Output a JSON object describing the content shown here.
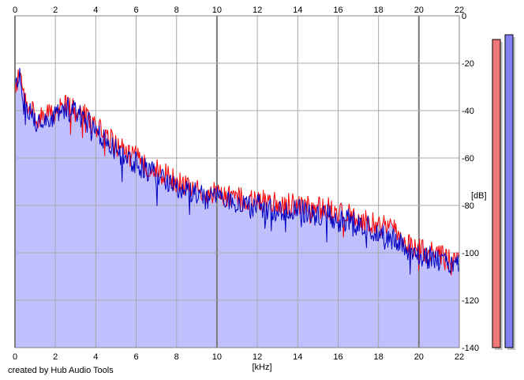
{
  "chart_data": {
    "type": "line",
    "x_unit": "[kHz]",
    "y_unit": "[dB]",
    "xlim": [
      0,
      22
    ],
    "ylim": [
      -140,
      0
    ],
    "x_ticks": [
      "0",
      "2",
      "4",
      "6",
      "8",
      "10",
      "12",
      "14",
      "16",
      "18",
      "20",
      "22"
    ],
    "y_ticks": [
      "0",
      "-20",
      "-40",
      "-60",
      "-80",
      "-100",
      "-120",
      "-140"
    ],
    "grid": true,
    "fill_color": "#c0c0ff",
    "series": [
      {
        "color": "#ff0000",
        "x": [
          0,
          0.2,
          0.5,
          1,
          1.5,
          2,
          2.5,
          3,
          3.5,
          4,
          4.5,
          5,
          5.5,
          6,
          6.5,
          7,
          7.5,
          8,
          8.5,
          9,
          9.5,
          10,
          10.5,
          11,
          11.5,
          12,
          12.5,
          13,
          13.5,
          14,
          14.5,
          15,
          15.5,
          16,
          16.5,
          17,
          17.5,
          18,
          18.5,
          19,
          19.5,
          20,
          20.5,
          21,
          21.5,
          22
        ],
        "y": [
          -30,
          -26,
          -36,
          -42,
          -43,
          -40,
          -38,
          -40,
          -42,
          -47,
          -50,
          -55,
          -58,
          -60,
          -63,
          -65,
          -67,
          -70,
          -72,
          -73,
          -74,
          -75,
          -76,
          -77,
          -78,
          -78,
          -79,
          -79,
          -80,
          -79,
          -80,
          -81,
          -81,
          -83,
          -83,
          -85,
          -87,
          -88,
          -90,
          -92,
          -96,
          -98,
          -100,
          -101,
          -103,
          -104
        ]
      },
      {
        "color": "#0000c0",
        "x": [
          0,
          0.2,
          0.5,
          1,
          1.5,
          2,
          2.5,
          3,
          3.5,
          4,
          4.5,
          5,
          5.5,
          6,
          6.5,
          7,
          7.5,
          8,
          8.5,
          9,
          9.5,
          10,
          10.5,
          11,
          11.5,
          12,
          12.5,
          13,
          13.5,
          14,
          14.5,
          15,
          15.5,
          16,
          16.5,
          17,
          17.5,
          18,
          18.5,
          19,
          19.5,
          20,
          20.5,
          21,
          21.5,
          22
        ],
        "y": [
          -32,
          -24,
          -38,
          -44,
          -44,
          -41,
          -39,
          -41,
          -44,
          -49,
          -53,
          -57,
          -60,
          -62,
          -65,
          -67,
          -70,
          -72,
          -74,
          -75,
          -77,
          -77,
          -79,
          -80,
          -81,
          -80,
          -82,
          -82,
          -83,
          -81,
          -83,
          -84,
          -84,
          -86,
          -86,
          -88,
          -89,
          -91,
          -93,
          -95,
          -99,
          -101,
          -102,
          -103,
          -105,
          -106
        ]
      }
    ],
    "meters": [
      {
        "color": "#f07878",
        "level": -10
      },
      {
        "color": "#8080f0",
        "level": -8
      }
    ]
  },
  "credit": "created by Hub Audio Tools"
}
